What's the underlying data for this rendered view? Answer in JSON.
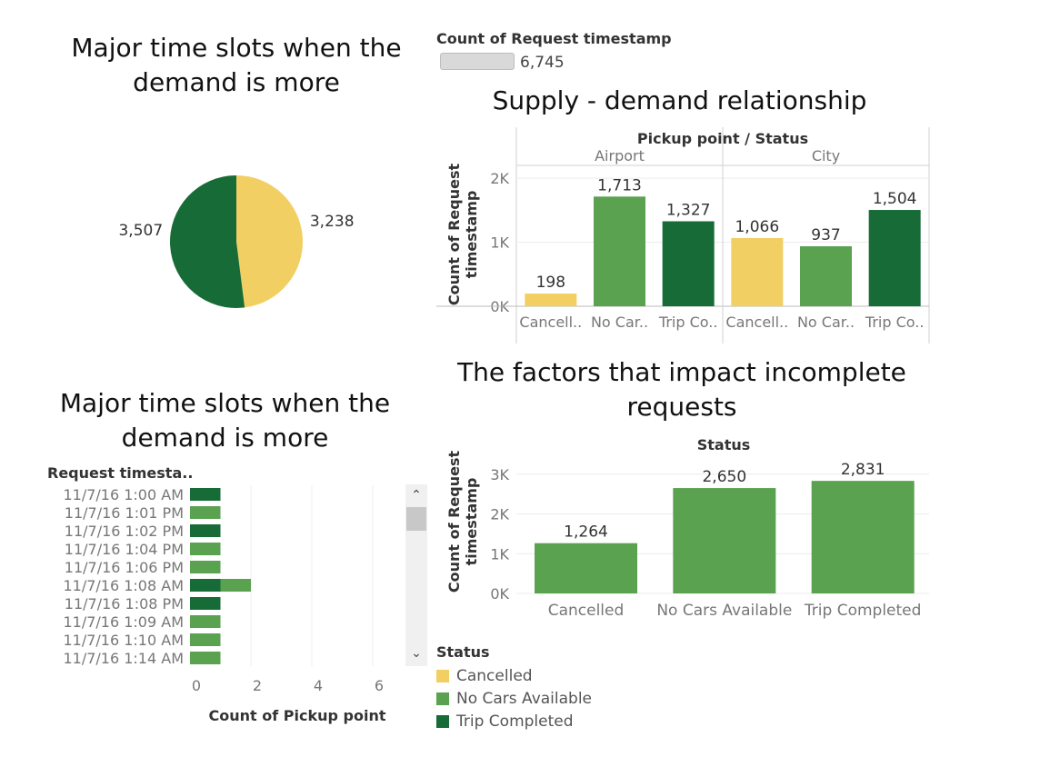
{
  "colors": {
    "cancelled": "#f2cf62",
    "no_cars": "#5aa150",
    "trip_completed": "#176b36",
    "axis_text": "#777777",
    "grid": "#e6e6e6"
  },
  "pie": {
    "title": "Major time slots when the demand is more"
  },
  "kpi": {
    "label": "Count of Request timestamp",
    "value_text": "6,745"
  },
  "supply": {
    "title": "Supply - demand relationship",
    "header": "Pickup point  /  Status",
    "ylabel": "Count of Request timestamp"
  },
  "factors": {
    "title": "The factors that impact incomplete requests",
    "header": "Status",
    "ylabel": "Count of Request timestamp"
  },
  "timeslots": {
    "title": "Major time slots when the demand is more",
    "row_header": "Request timesta..",
    "xlabel": "Count of Pickup point"
  },
  "legend": {
    "title": "Status",
    "items": [
      {
        "label": "Cancelled",
        "color": "#f2cf62"
      },
      {
        "label": "No Cars Available",
        "color": "#5aa150"
      },
      {
        "label": "Trip Completed",
        "color": "#176b36"
      }
    ]
  },
  "chart_data": [
    {
      "type": "pie",
      "title": "Major time slots when the demand is more",
      "slices": [
        {
          "label": "3,238",
          "value": 3238,
          "color": "#f2cf62"
        },
        {
          "label": "3,507",
          "value": 3507,
          "color": "#176b36"
        }
      ]
    },
    {
      "type": "bar",
      "title": "Supply - demand relationship",
      "ylabel": "Count of Request timestamp",
      "ylim": [
        0,
        2200
      ],
      "yticks": [
        {
          "v": 0,
          "t": "0K"
        },
        {
          "v": 1000,
          "t": "1K"
        },
        {
          "v": 2000,
          "t": "2K"
        }
      ],
      "groups": [
        {
          "name": "Airport",
          "bars": [
            {
              "cat": "Cancell..",
              "value": 198,
              "label": "198",
              "color": "#f2cf62"
            },
            {
              "cat": "No Car..",
              "value": 1713,
              "label": "1,713",
              "color": "#5aa150"
            },
            {
              "cat": "Trip Co..",
              "value": 1327,
              "label": "1,327",
              "color": "#176b36"
            }
          ]
        },
        {
          "name": "City",
          "bars": [
            {
              "cat": "Cancell..",
              "value": 1066,
              "label": "1,066",
              "color": "#f2cf62"
            },
            {
              "cat": "No Car..",
              "value": 937,
              "label": "937",
              "color": "#5aa150"
            },
            {
              "cat": "Trip Co..",
              "value": 1504,
              "label": "1,504",
              "color": "#176b36"
            }
          ]
        }
      ]
    },
    {
      "type": "bar",
      "title": "The factors that impact incomplete requests",
      "ylabel": "Count of Request timestamp",
      "ylim": [
        0,
        3200
      ],
      "yticks": [
        {
          "v": 0,
          "t": "0K"
        },
        {
          "v": 1000,
          "t": "1K"
        },
        {
          "v": 2000,
          "t": "2K"
        },
        {
          "v": 3000,
          "t": "3K"
        }
      ],
      "bars": [
        {
          "cat": "Cancelled",
          "value": 1264,
          "label": "1,264",
          "color": "#5aa150"
        },
        {
          "cat": "No Cars Available",
          "value": 2650,
          "label": "2,650",
          "color": "#5aa150"
        },
        {
          "cat": "Trip Completed",
          "value": 2831,
          "label": "2,831",
          "color": "#5aa150"
        }
      ]
    },
    {
      "type": "bar",
      "orientation": "horizontal",
      "title": "Major time slots when the demand is more",
      "xlabel": "Count of Pickup point",
      "xlim": [
        0,
        7
      ],
      "xticks": [
        0,
        2,
        4,
        6
      ],
      "rows": [
        {
          "label": "11/7/16 1:00 AM",
          "segments": [
            {
              "value": 1,
              "color": "#176b36"
            }
          ]
        },
        {
          "label": "11/7/16 1:01 PM",
          "segments": [
            {
              "value": 1,
              "color": "#5aa150"
            }
          ]
        },
        {
          "label": "11/7/16 1:02 PM",
          "segments": [
            {
              "value": 1,
              "color": "#176b36"
            }
          ]
        },
        {
          "label": "11/7/16 1:04 PM",
          "segments": [
            {
              "value": 1,
              "color": "#5aa150"
            }
          ]
        },
        {
          "label": "11/7/16 1:06 PM",
          "segments": [
            {
              "value": 1,
              "color": "#5aa150"
            }
          ]
        },
        {
          "label": "11/7/16 1:08 AM",
          "segments": [
            {
              "value": 1,
              "color": "#176b36"
            },
            {
              "value": 1,
              "color": "#5aa150"
            }
          ]
        },
        {
          "label": "11/7/16 1:08 PM",
          "segments": [
            {
              "value": 1,
              "color": "#176b36"
            }
          ]
        },
        {
          "label": "11/7/16 1:09 AM",
          "segments": [
            {
              "value": 1,
              "color": "#5aa150"
            }
          ]
        },
        {
          "label": "11/7/16 1:10 AM",
          "segments": [
            {
              "value": 1,
              "color": "#5aa150"
            }
          ]
        },
        {
          "label": "11/7/16 1:14 AM",
          "segments": [
            {
              "value": 1,
              "color": "#5aa150"
            }
          ]
        }
      ]
    }
  ]
}
